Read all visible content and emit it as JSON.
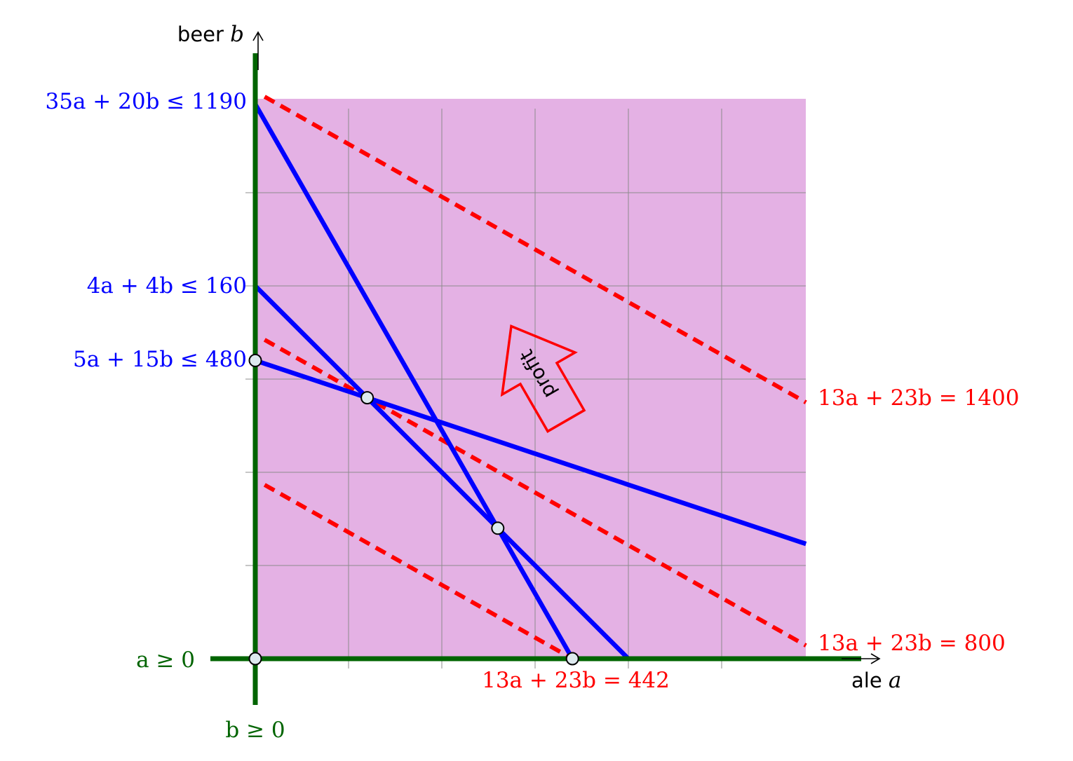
{
  "axes": {
    "x_name": "ale",
    "x_var": "a",
    "y_name": "beer",
    "y_var": "b",
    "xlim": [
      0,
      60
    ],
    "ylim": [
      0,
      60
    ],
    "grid_step": 10,
    "grid": true
  },
  "colors": {
    "region": "#e4b1e4",
    "grid": "#8c8c8c",
    "constraint": "#0000ff",
    "nonneg": "#006400",
    "profit": "#ff0000",
    "vertex_fill": "#dde9ee"
  },
  "constraints": [
    {
      "label": "35a + 20b ≤ 1190",
      "coef": [
        35,
        20
      ],
      "rhs": 1190
    },
    {
      "label": "4a + 4b ≤ 160",
      "coef": [
        4,
        4
      ],
      "rhs": 160
    },
    {
      "label": "5a + 15b ≤ 480",
      "coef": [
        5,
        15
      ],
      "rhs": 480
    }
  ],
  "nonnegativity": [
    {
      "label": "a ≥ 0"
    },
    {
      "label": "b ≥ 0"
    }
  ],
  "profit_lines": [
    {
      "label": "13a + 23b = 442",
      "coef": [
        13,
        23
      ],
      "rhs": 442
    },
    {
      "label": "13a + 23b = 800",
      "coef": [
        13,
        23
      ],
      "rhs": 800
    },
    {
      "label": "13a + 23b = 1400",
      "coef": [
        13,
        23
      ],
      "rhs": 1400
    }
  ],
  "profit_arrow": {
    "label": "profit"
  },
  "vertices": [
    {
      "a": 0,
      "b": 0
    },
    {
      "a": 0,
      "b": 32
    },
    {
      "a": 12,
      "b": 28
    },
    {
      "a": 26,
      "b": 14
    },
    {
      "a": 34,
      "b": 0
    }
  ]
}
